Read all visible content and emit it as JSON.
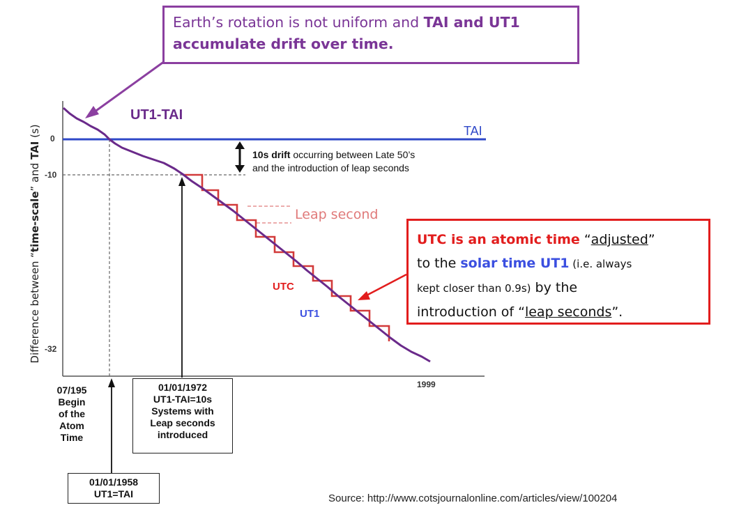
{
  "callout_top": {
    "text_plain": "Earth’s rotation is not uniform and ",
    "text_bold": "TAI and UT1 accumulate drift over time."
  },
  "labels": {
    "ut1_tai": "UT1-TAI",
    "tai": "TAI",
    "drift_bold": "10s drift",
    "drift_line1_rest": " occurring between Late 50’s",
    "drift_line2": "and the introduction of leap seconds",
    "leap_second": "Leap second",
    "utc": "UTC",
    "ut1": "UT1",
    "tick_0": "0",
    "tick_minus10": "-10",
    "tick_minus32": "-32",
    "year_1999": "1999",
    "y_axis": "Difference between “time-scale” and TAI (s)"
  },
  "y_axis_parts": {
    "pre": "Difference between “",
    "bold1": "time-scale",
    "mid": "” and ",
    "bold2": "TAI",
    "post": " (s)"
  },
  "atom_time": {
    "l1": "07/195",
    "l2": "Begin",
    "l3": "of the",
    "l4": "Atom",
    "l5": "Time"
  },
  "box_1972": {
    "l1": "01/01/1972",
    "l2": "UT1-TAI=10s",
    "l3": "Systems with",
    "l4": "Leap seconds",
    "l5": "introduced"
  },
  "box_1958": {
    "l1": "01/01/1958",
    "l2": "UT1=TAI"
  },
  "callout_utc": {
    "p1_red": "UTC is an atomic time",
    "p1_q": " “",
    "p1_u": "adjusted",
    "p1_q2": "”",
    "p2_pre": "to the ",
    "p2_blue": "solar time UT1",
    "p2_small": " (i.e. always",
    "p3_small": "kept closer than 0.9s)",
    "p3_rest": "  by the",
    "p4_pre": "introduction of “",
    "p4_u": "leap seconds",
    "p4_post": "”."
  },
  "source": "Source: http://www.cotsjournalonline.com/articles/view/100204",
  "colors": {
    "purple_curve": "#6a2a8a",
    "tai_line": "#2f48c8",
    "utc_steps": "#d23a3a",
    "callout_purple": "#8b3fa0",
    "callout_red": "#e21d1d"
  }
}
